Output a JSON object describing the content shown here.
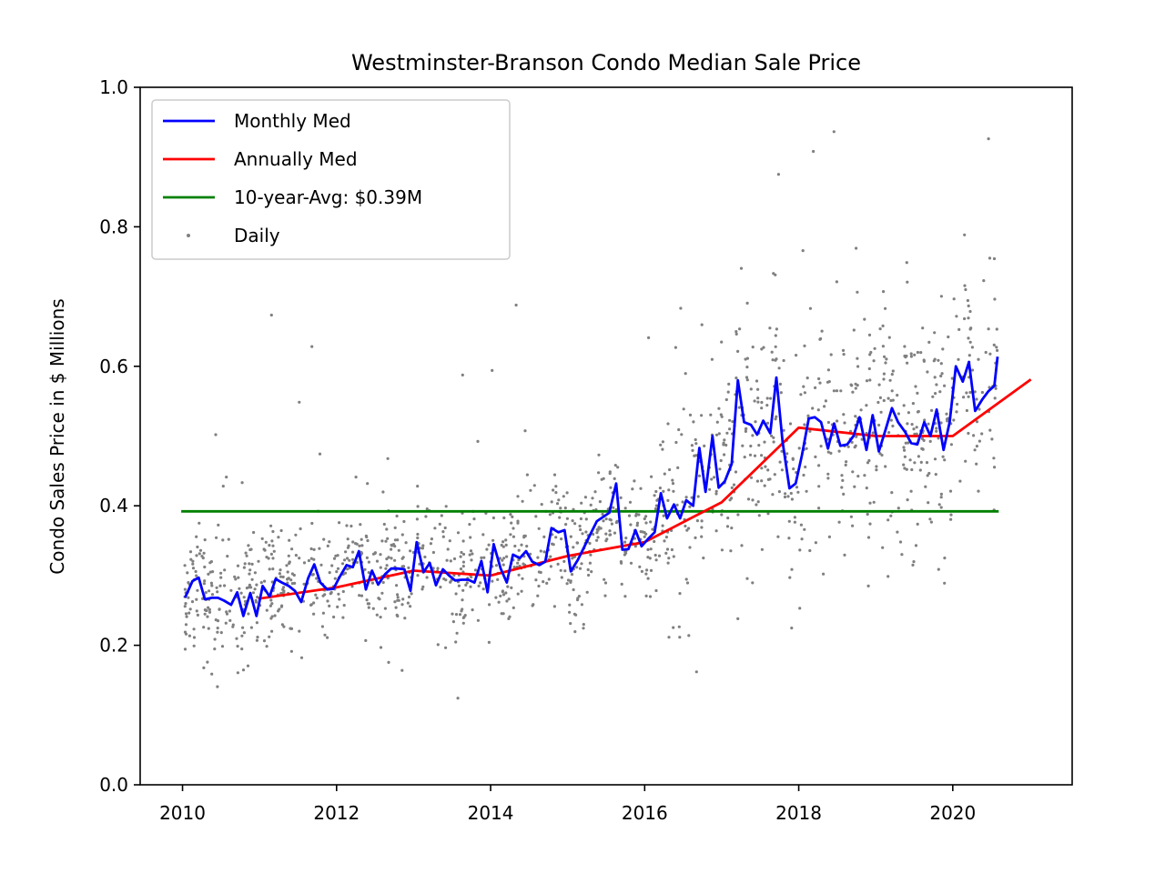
{
  "chart_data": {
    "type": "line",
    "title": "Westminster-Branson Condo Median Sale Price",
    "xlabel": "",
    "ylabel": "Condo Sales Price in $ Millions",
    "xlim": [
      2009.45,
      2021.55
    ],
    "ylim": [
      0.0,
      1.0
    ],
    "x_ticks": [
      2010,
      2012,
      2014,
      2016,
      2018,
      2020
    ],
    "y_ticks": [
      0.0,
      0.2,
      0.4,
      0.6,
      0.8,
      1.0
    ],
    "x_tick_labels": [
      "2010",
      "2012",
      "2014",
      "2016",
      "2018",
      "2020"
    ],
    "y_tick_labels": [
      "0.0",
      "0.2",
      "0.4",
      "0.6",
      "0.8",
      "1.0"
    ],
    "grid": false,
    "legend_position": "top-left",
    "legend": [
      {
        "label": "Monthly Med",
        "series_key": "monthly",
        "kind": "line"
      },
      {
        "label": "Annually Med",
        "series_key": "annual",
        "kind": "line"
      },
      {
        "label": "10-year-Avg: $0.39M",
        "series_key": "avg",
        "kind": "line"
      },
      {
        "label": "Daily",
        "series_key": "daily",
        "kind": "scatter"
      }
    ],
    "series": {
      "monthly": {
        "name": "Monthly Med",
        "color": "#0000ff",
        "x": [
          2010.04,
          2010.13,
          2010.21,
          2010.29,
          2010.38,
          2010.46,
          2010.54,
          2010.63,
          2010.71,
          2010.79,
          2010.88,
          2010.96,
          2011.04,
          2011.13,
          2011.21,
          2011.29,
          2011.38,
          2011.46,
          2011.54,
          2011.63,
          2011.71,
          2011.79,
          2011.88,
          2011.96,
          2012.04,
          2012.13,
          2012.21,
          2012.29,
          2012.38,
          2012.46,
          2012.54,
          2012.63,
          2012.71,
          2012.79,
          2012.88,
          2012.96,
          2013.04,
          2013.13,
          2013.21,
          2013.29,
          2013.38,
          2013.46,
          2013.54,
          2013.63,
          2013.71,
          2013.79,
          2013.88,
          2013.96,
          2014.04,
          2014.13,
          2014.21,
          2014.29,
          2014.38,
          2014.46,
          2014.54,
          2014.63,
          2014.71,
          2014.79,
          2014.88,
          2014.96,
          2015.04,
          2015.13,
          2015.21,
          2015.29,
          2015.38,
          2015.46,
          2015.54,
          2015.63,
          2015.71,
          2015.79,
          2015.88,
          2015.96,
          2016.04,
          2016.13,
          2016.21,
          2016.29,
          2016.38,
          2016.46,
          2016.54,
          2016.63,
          2016.71,
          2016.79,
          2016.88,
          2016.96,
          2017.04,
          2017.13,
          2017.21,
          2017.29,
          2017.38,
          2017.46,
          2017.54,
          2017.63,
          2017.71,
          2017.79,
          2017.88,
          2017.96,
          2018.04,
          2018.13,
          2018.21,
          2018.29,
          2018.38,
          2018.46,
          2018.54,
          2018.63,
          2018.71,
          2018.79,
          2018.88,
          2018.96,
          2019.04,
          2019.13,
          2019.21,
          2019.29,
          2019.38,
          2019.46,
          2019.54,
          2019.63,
          2019.71,
          2019.79,
          2019.88,
          2019.96,
          2020.04,
          2020.13,
          2020.21,
          2020.29,
          2020.38,
          2020.46,
          2020.54,
          2020.58
        ],
        "y": [
          0.27,
          0.292,
          0.297,
          0.266,
          0.268,
          0.268,
          0.264,
          0.258,
          0.276,
          0.242,
          0.275,
          0.242,
          0.285,
          0.27,
          0.295,
          0.29,
          0.285,
          0.278,
          0.262,
          0.296,
          0.316,
          0.29,
          0.28,
          0.281,
          0.298,
          0.315,
          0.312,
          0.335,
          0.28,
          0.307,
          0.287,
          0.302,
          0.31,
          0.31,
          0.309,
          0.278,
          0.348,
          0.305,
          0.318,
          0.286,
          0.309,
          0.3,
          0.293,
          0.294,
          0.294,
          0.29,
          0.321,
          0.276,
          0.345,
          0.31,
          0.29,
          0.33,
          0.325,
          0.335,
          0.32,
          0.315,
          0.32,
          0.368,
          0.362,
          0.365,
          0.306,
          0.322,
          0.34,
          0.358,
          0.378,
          0.384,
          0.39,
          0.432,
          0.337,
          0.338,
          0.365,
          0.342,
          0.352,
          0.362,
          0.418,
          0.382,
          0.402,
          0.382,
          0.408,
          0.4,
          0.483,
          0.42,
          0.5,
          0.426,
          0.435,
          0.46,
          0.58,
          0.52,
          0.516,
          0.502,
          0.522,
          0.504,
          0.584,
          0.492,
          0.425,
          0.432,
          0.472,
          0.525,
          0.527,
          0.52,
          0.482,
          0.518,
          0.486,
          0.488,
          0.5,
          0.527,
          0.48,
          0.53,
          0.478,
          0.51,
          0.54,
          0.52,
          0.506,
          0.49,
          0.488,
          0.52,
          0.5,
          0.538,
          0.48,
          0.52,
          0.6,
          0.578,
          0.606,
          0.536,
          0.552,
          0.564,
          0.572,
          0.612
        ]
      },
      "annual": {
        "name": "Annually Med",
        "color": "#ff0000",
        "x": [
          2011.0,
          2012.0,
          2013.0,
          2014.0,
          2015.0,
          2016.0,
          2017.0,
          2018.0,
          2019.0,
          2020.0,
          2021.0
        ],
        "y": [
          0.267,
          0.283,
          0.307,
          0.3,
          0.328,
          0.348,
          0.405,
          0.512,
          0.5,
          0.5,
          0.58
        ]
      },
      "avg": {
        "name": "10-year-Avg: $0.39M",
        "color": "#008000",
        "x": [
          2010.0,
          2020.58
        ],
        "y": [
          0.392,
          0.392
        ]
      },
      "daily": {
        "name": "Daily",
        "color": "#808080",
        "note_count": 1500
      }
    }
  }
}
